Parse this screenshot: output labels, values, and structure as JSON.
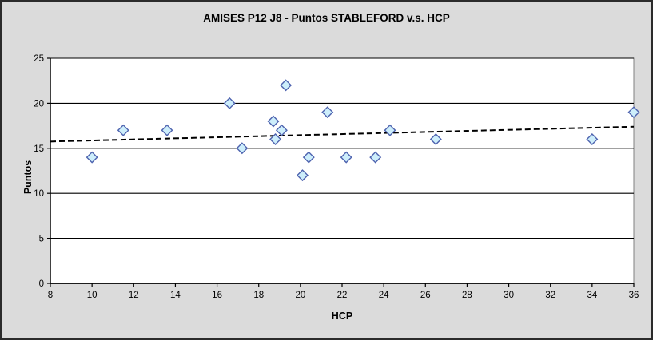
{
  "chart_data": {
    "type": "scatter",
    "title": "AMISES P12 J8 - Puntos STABLEFORD v.s. HCP",
    "xlabel": "HCP",
    "ylabel": "Puntos",
    "xlim": [
      8,
      36
    ],
    "ylim": [
      0,
      25
    ],
    "x_ticks": [
      8,
      10,
      12,
      14,
      16,
      18,
      20,
      22,
      24,
      26,
      28,
      30,
      32,
      34,
      36
    ],
    "y_ticks": [
      0,
      5,
      10,
      15,
      20,
      25
    ],
    "grid": "horizontal-only",
    "legend_position": "none",
    "marker_shape": "diamond",
    "series": [
      {
        "name": "Puntos STABLEFORD",
        "points": [
          [
            10,
            14
          ],
          [
            11.5,
            17
          ],
          [
            13.6,
            17
          ],
          [
            16.6,
            20
          ],
          [
            17.2,
            15
          ],
          [
            18.7,
            18
          ],
          [
            18.8,
            16
          ],
          [
            19.1,
            17
          ],
          [
            19.3,
            22
          ],
          [
            20.1,
            12
          ],
          [
            20.4,
            14
          ],
          [
            21.3,
            19
          ],
          [
            22.2,
            14
          ],
          [
            23.6,
            14
          ],
          [
            24.3,
            17
          ],
          [
            26.5,
            16
          ],
          [
            34,
            16
          ],
          [
            36,
            19
          ]
        ]
      }
    ],
    "trendline": {
      "style": "dashed",
      "x_start": 8,
      "y_start": 15.75,
      "x_end": 36,
      "y_end": 17.4
    },
    "colors": {
      "background": "#DBDBDB",
      "plot_background": "#FFFFFF",
      "plot_border": "#808080",
      "gridline": "#000000",
      "axis": "#000000",
      "marker_fill": "#CDEEFB",
      "marker_stroke": "#4E63AF",
      "trendline": "#000000",
      "text": "#000000"
    }
  }
}
